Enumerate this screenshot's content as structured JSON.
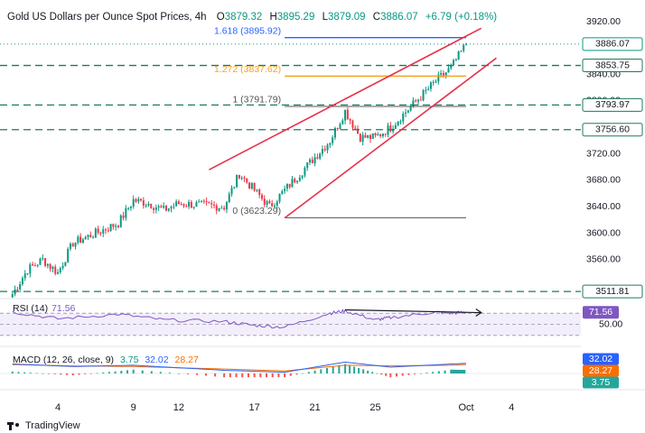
{
  "header": {
    "title": "Gold US Dollars per Ounce Spot Prices, 4h",
    "open_label": "O",
    "open": "3879.32",
    "high_label": "H",
    "high": "3895.29",
    "low_label": "L",
    "low": "3879.09",
    "close_label": "C",
    "close": "3886.07",
    "change": "+6.79 (+0.18%)"
  },
  "colors": {
    "up": "#089981",
    "down": "#f23645",
    "channel": "#e8314a",
    "fib_top": "#2962ff",
    "fib_mid": "#f7a21b",
    "rsi": "#7e57c2",
    "macd": "#2962ff",
    "signal": "#ff6d00"
  },
  "chart_data": {
    "type": "candlestick",
    "y_ticks": [
      3920,
      3880,
      3840,
      3800,
      3760,
      3720,
      3680,
      3640,
      3600,
      3560
    ],
    "y_tick_labels": [
      "3920.00",
      "3880.00",
      "3840.00",
      "3800.00",
      "3760.00",
      "3720.00",
      "3680.00",
      "3640.00",
      "3600.00",
      "3560.00"
    ],
    "x_ticks": [
      {
        "label": "4",
        "date": "2025-09-04"
      },
      {
        "label": "9",
        "date": "2025-09-09"
      },
      {
        "label": "12",
        "date": "2025-09-12"
      },
      {
        "label": "17",
        "date": "2025-09-17"
      },
      {
        "label": "21",
        "date": "2025-09-21"
      },
      {
        "label": "25",
        "date": "2025-09-25"
      },
      {
        "label": "Oct",
        "date": "2025-10-01"
      },
      {
        "label": "4",
        "date": "2025-10-04"
      }
    ],
    "close_anchors": [
      {
        "date": "2025-09-01",
        "price": 3508
      },
      {
        "date": "2025-09-02",
        "price": 3545
      },
      {
        "date": "2025-09-03",
        "price": 3560
      },
      {
        "date": "2025-09-04",
        "price": 3540
      },
      {
        "date": "2025-09-05",
        "price": 3585
      },
      {
        "date": "2025-09-08",
        "price": 3615
      },
      {
        "date": "2025-09-09",
        "price": 3650
      },
      {
        "date": "2025-09-10",
        "price": 3645
      },
      {
        "date": "2025-09-11",
        "price": 3635
      },
      {
        "date": "2025-09-12",
        "price": 3645
      },
      {
        "date": "2025-09-15",
        "price": 3640
      },
      {
        "date": "2025-09-16",
        "price": 3690
      },
      {
        "date": "2025-09-17",
        "price": 3665
      },
      {
        "date": "2025-09-18",
        "price": 3640
      },
      {
        "date": "2025-09-19",
        "price": 3665
      },
      {
        "date": "2025-09-22",
        "price": 3740
      },
      {
        "date": "2025-09-23",
        "price": 3785
      },
      {
        "date": "2025-09-24",
        "price": 3745
      },
      {
        "date": "2025-09-25",
        "price": 3745
      },
      {
        "date": "2025-09-26",
        "price": 3760
      },
      {
        "date": "2025-09-29",
        "price": 3830
      },
      {
        "date": "2025-09-30",
        "price": 3850
      },
      {
        "date": "2025-10-01",
        "price": 3886
      }
    ],
    "horizontal_levels": [
      {
        "price": 3853.75,
        "label": "3853.75"
      },
      {
        "price": 3793.97,
        "label": "3793.97"
      },
      {
        "price": 3756.6,
        "label": "3756.60"
      },
      {
        "price": 3511.81,
        "label": "3511.81"
      }
    ],
    "last_price": {
      "price": 3886.07,
      "label": "3886.07"
    },
    "fibonacci": [
      {
        "ratio": "1.618",
        "price": 3895.92,
        "label": "1.618 (3895.92)"
      },
      {
        "ratio": "1.272",
        "price": 3837.62,
        "label": "1.272 (3837.62)"
      },
      {
        "ratio": "1",
        "price": 3791.79,
        "label": "1 (3791.79)"
      },
      {
        "ratio": "0",
        "price": 3623.29,
        "label": "0 (3623.29)"
      }
    ],
    "fib_span": {
      "start": "2025-09-19",
      "end": "2025-10-01"
    },
    "channel": {
      "upper": [
        {
          "date": "2025-09-14",
          "price": 3696
        },
        {
          "date": "2025-10-02",
          "price": 3910
        }
      ],
      "lower": [
        {
          "date": "2025-09-19",
          "price": 3623
        },
        {
          "date": "2025-10-03",
          "price": 3865
        }
      ]
    },
    "rsi": {
      "label": "RSI (14)",
      "value": "71.56",
      "levels": [
        70,
        50,
        30
      ],
      "level_labels": [
        "",
        "50.00",
        ""
      ],
      "anchors": [
        {
          "date": "2025-09-01",
          "value": 72
        },
        {
          "date": "2025-09-04",
          "value": 60
        },
        {
          "date": "2025-09-08",
          "value": 68
        },
        {
          "date": "2025-09-11",
          "value": 58
        },
        {
          "date": "2025-09-15",
          "value": 55
        },
        {
          "date": "2025-09-17",
          "value": 48
        },
        {
          "date": "2025-09-19",
          "value": 45
        },
        {
          "date": "2025-09-22",
          "value": 70
        },
        {
          "date": "2025-09-23",
          "value": 74
        },
        {
          "date": "2025-09-25",
          "value": 58
        },
        {
          "date": "2025-09-26",
          "value": 62
        },
        {
          "date": "2025-09-29",
          "value": 72
        },
        {
          "date": "2025-09-30",
          "value": 70
        },
        {
          "date": "2025-10-01",
          "value": 71.56
        }
      ],
      "divergence_line": [
        {
          "date": "2025-09-23",
          "value": 76
        },
        {
          "date": "2025-10-02",
          "value": 71
        }
      ]
    },
    "macd": {
      "label": "MACD (12, 26, close, 9)",
      "hist": "3.75",
      "macd": "32.02",
      "signal": "28.27",
      "anchors": [
        {
          "date": "2025-09-01",
          "macd": 30,
          "signal": 28
        },
        {
          "date": "2025-09-05",
          "macd": 22,
          "signal": 24
        },
        {
          "date": "2025-09-09",
          "macd": 26,
          "signal": 22
        },
        {
          "date": "2025-09-15",
          "macd": 10,
          "signal": 14
        },
        {
          "date": "2025-09-19",
          "macd": 4,
          "signal": 8
        },
        {
          "date": "2025-09-23",
          "macd": 36,
          "signal": 26
        },
        {
          "date": "2025-09-26",
          "macd": 20,
          "signal": 24
        },
        {
          "date": "2025-09-30",
          "macd": 30,
          "signal": 26
        },
        {
          "date": "2025-10-01",
          "macd": 32.02,
          "signal": 28.27
        }
      ]
    }
  },
  "branding": {
    "name": "TradingView"
  }
}
